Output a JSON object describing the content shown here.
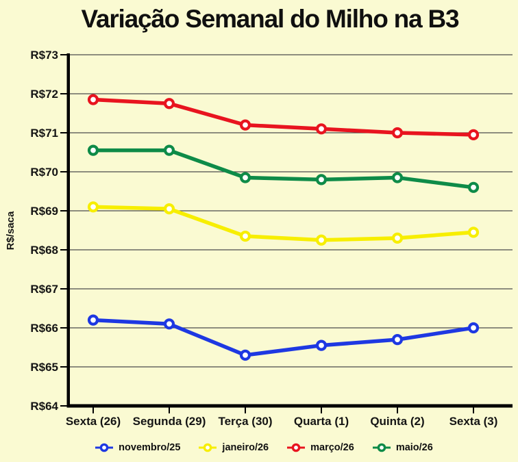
{
  "page": {
    "background": "#fafad2",
    "text_color": "#101010"
  },
  "chart_data": {
    "type": "line",
    "title": "Variação Semanal do Milho na B3",
    "ylabel": "R$/saca",
    "xlabel": "",
    "categories": [
      "Sexta (26)",
      "Segunda (29)",
      "Terça (30)",
      "Quarta (1)",
      "Quinta (2)",
      "Sexta (3)"
    ],
    "series": [
      {
        "name": "novembro/25",
        "color": "#1e38e2",
        "values": [
          66.2,
          66.1,
          65.3,
          65.55,
          65.7,
          66.0
        ]
      },
      {
        "name": "janeiro/26",
        "color": "#f7ee00",
        "values": [
          69.1,
          69.05,
          68.35,
          68.25,
          68.3,
          68.45
        ]
      },
      {
        "name": "março/26",
        "color": "#e8141f",
        "values": [
          71.85,
          71.75,
          71.2,
          71.1,
          71.0,
          70.95
        ]
      },
      {
        "name": "maio/26",
        "color": "#0e8b48",
        "values": [
          70.55,
          70.55,
          69.85,
          69.8,
          69.85,
          69.6
        ]
      }
    ],
    "ylim": [
      64,
      73
    ],
    "y_ticks": [
      "R$73",
      "R$72",
      "R$71",
      "R$70",
      "R$69",
      "R$68",
      "R$67",
      "R$66",
      "R$65",
      "R$64"
    ],
    "grid": true,
    "legend_position": "bottom",
    "colors": {
      "axis": "#000000",
      "gridline": "#4b4b4b",
      "marker_fill": "#ffffff"
    }
  }
}
